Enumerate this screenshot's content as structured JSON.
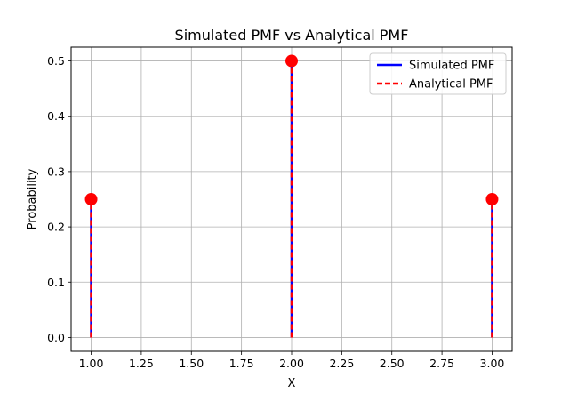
{
  "chart_data": {
    "type": "line",
    "title": "Simulated PMF vs Analytical PMF",
    "xlabel": "X",
    "ylabel": "Probability",
    "xlim": [
      0.9,
      3.1
    ],
    "ylim": [
      -0.025,
      0.525
    ],
    "xticks": [
      1.0,
      1.25,
      1.5,
      1.75,
      2.0,
      2.25,
      2.5,
      2.75,
      3.0
    ],
    "xtick_labels": [
      "1.00",
      "1.25",
      "1.50",
      "1.75",
      "2.00",
      "2.25",
      "2.50",
      "2.75",
      "3.00"
    ],
    "yticks": [
      0.0,
      0.1,
      0.2,
      0.3,
      0.4,
      0.5
    ],
    "ytick_labels": [
      "0.0",
      "0.1",
      "0.2",
      "0.3",
      "0.4",
      "0.5"
    ],
    "grid": true,
    "legend_position": "top-right",
    "x": [
      1,
      2,
      3
    ],
    "series": [
      {
        "name": "Simulated PMF",
        "style": "solid",
        "color": "#0000ff",
        "values": [
          0.25,
          0.5,
          0.25
        ]
      },
      {
        "name": "Analytical PMF",
        "style": "dashed",
        "color": "#ff0000",
        "values": [
          0.25,
          0.5,
          0.25
        ]
      }
    ],
    "marker_color": "#ff0000"
  }
}
